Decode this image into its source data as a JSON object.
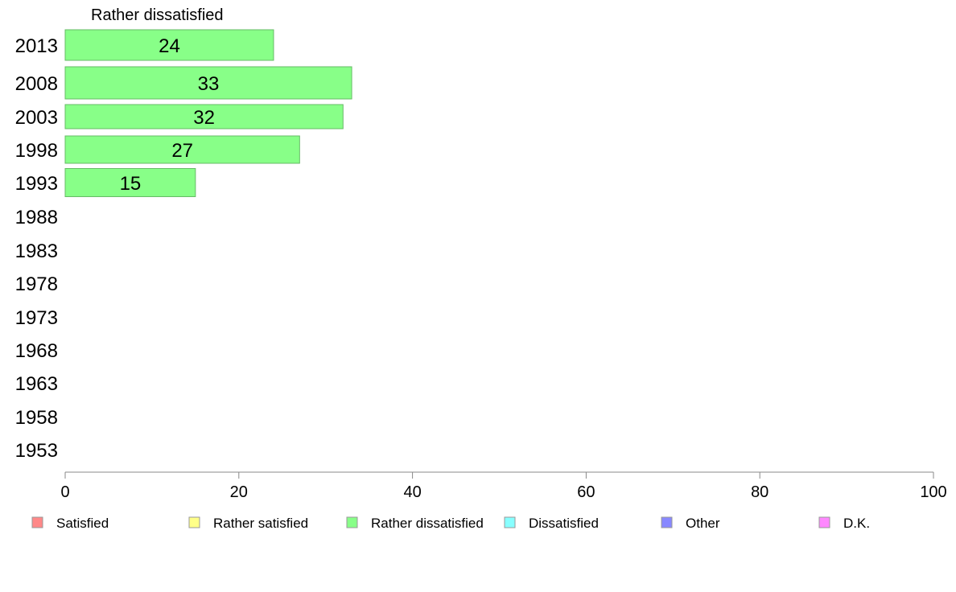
{
  "chart_data": {
    "type": "bar",
    "orientation": "horizontal",
    "title": "Rather dissatisfied",
    "categories": [
      "2013",
      "2008",
      "2003",
      "1998",
      "1993",
      "1988",
      "1983",
      "1978",
      "1973",
      "1968",
      "1963",
      "1958",
      "1953"
    ],
    "series": [
      {
        "name": "Rather dissatisfied",
        "values": [
          24,
          33,
          32,
          27,
          15,
          null,
          null,
          null,
          null,
          null,
          null,
          null,
          null
        ],
        "value_labels": [
          "24",
          "33",
          "32",
          "27",
          "15",
          "",
          "",
          "",
          "",
          "",
          "",
          "",
          ""
        ],
        "color": "#88ff88"
      }
    ],
    "xlim": [
      0,
      100
    ],
    "xticks": [
      0,
      20,
      40,
      60,
      80,
      100
    ],
    "xtick_labels": [
      "0",
      "20",
      "40",
      "60",
      "80",
      "100"
    ],
    "grid": false,
    "legend_position": "bottom",
    "legend": [
      {
        "label": "Satisfied",
        "color": "#ff8888"
      },
      {
        "label": "Rather satisfied",
        "color": "#ffff88"
      },
      {
        "label": "Rather dissatisfied",
        "color": "#88ff88"
      },
      {
        "label": "Dissatisfied",
        "color": "#88ffff"
      },
      {
        "label": "Other",
        "color": "#8888ff"
      },
      {
        "label": "D.K.",
        "color": "#ff88ff"
      }
    ]
  }
}
